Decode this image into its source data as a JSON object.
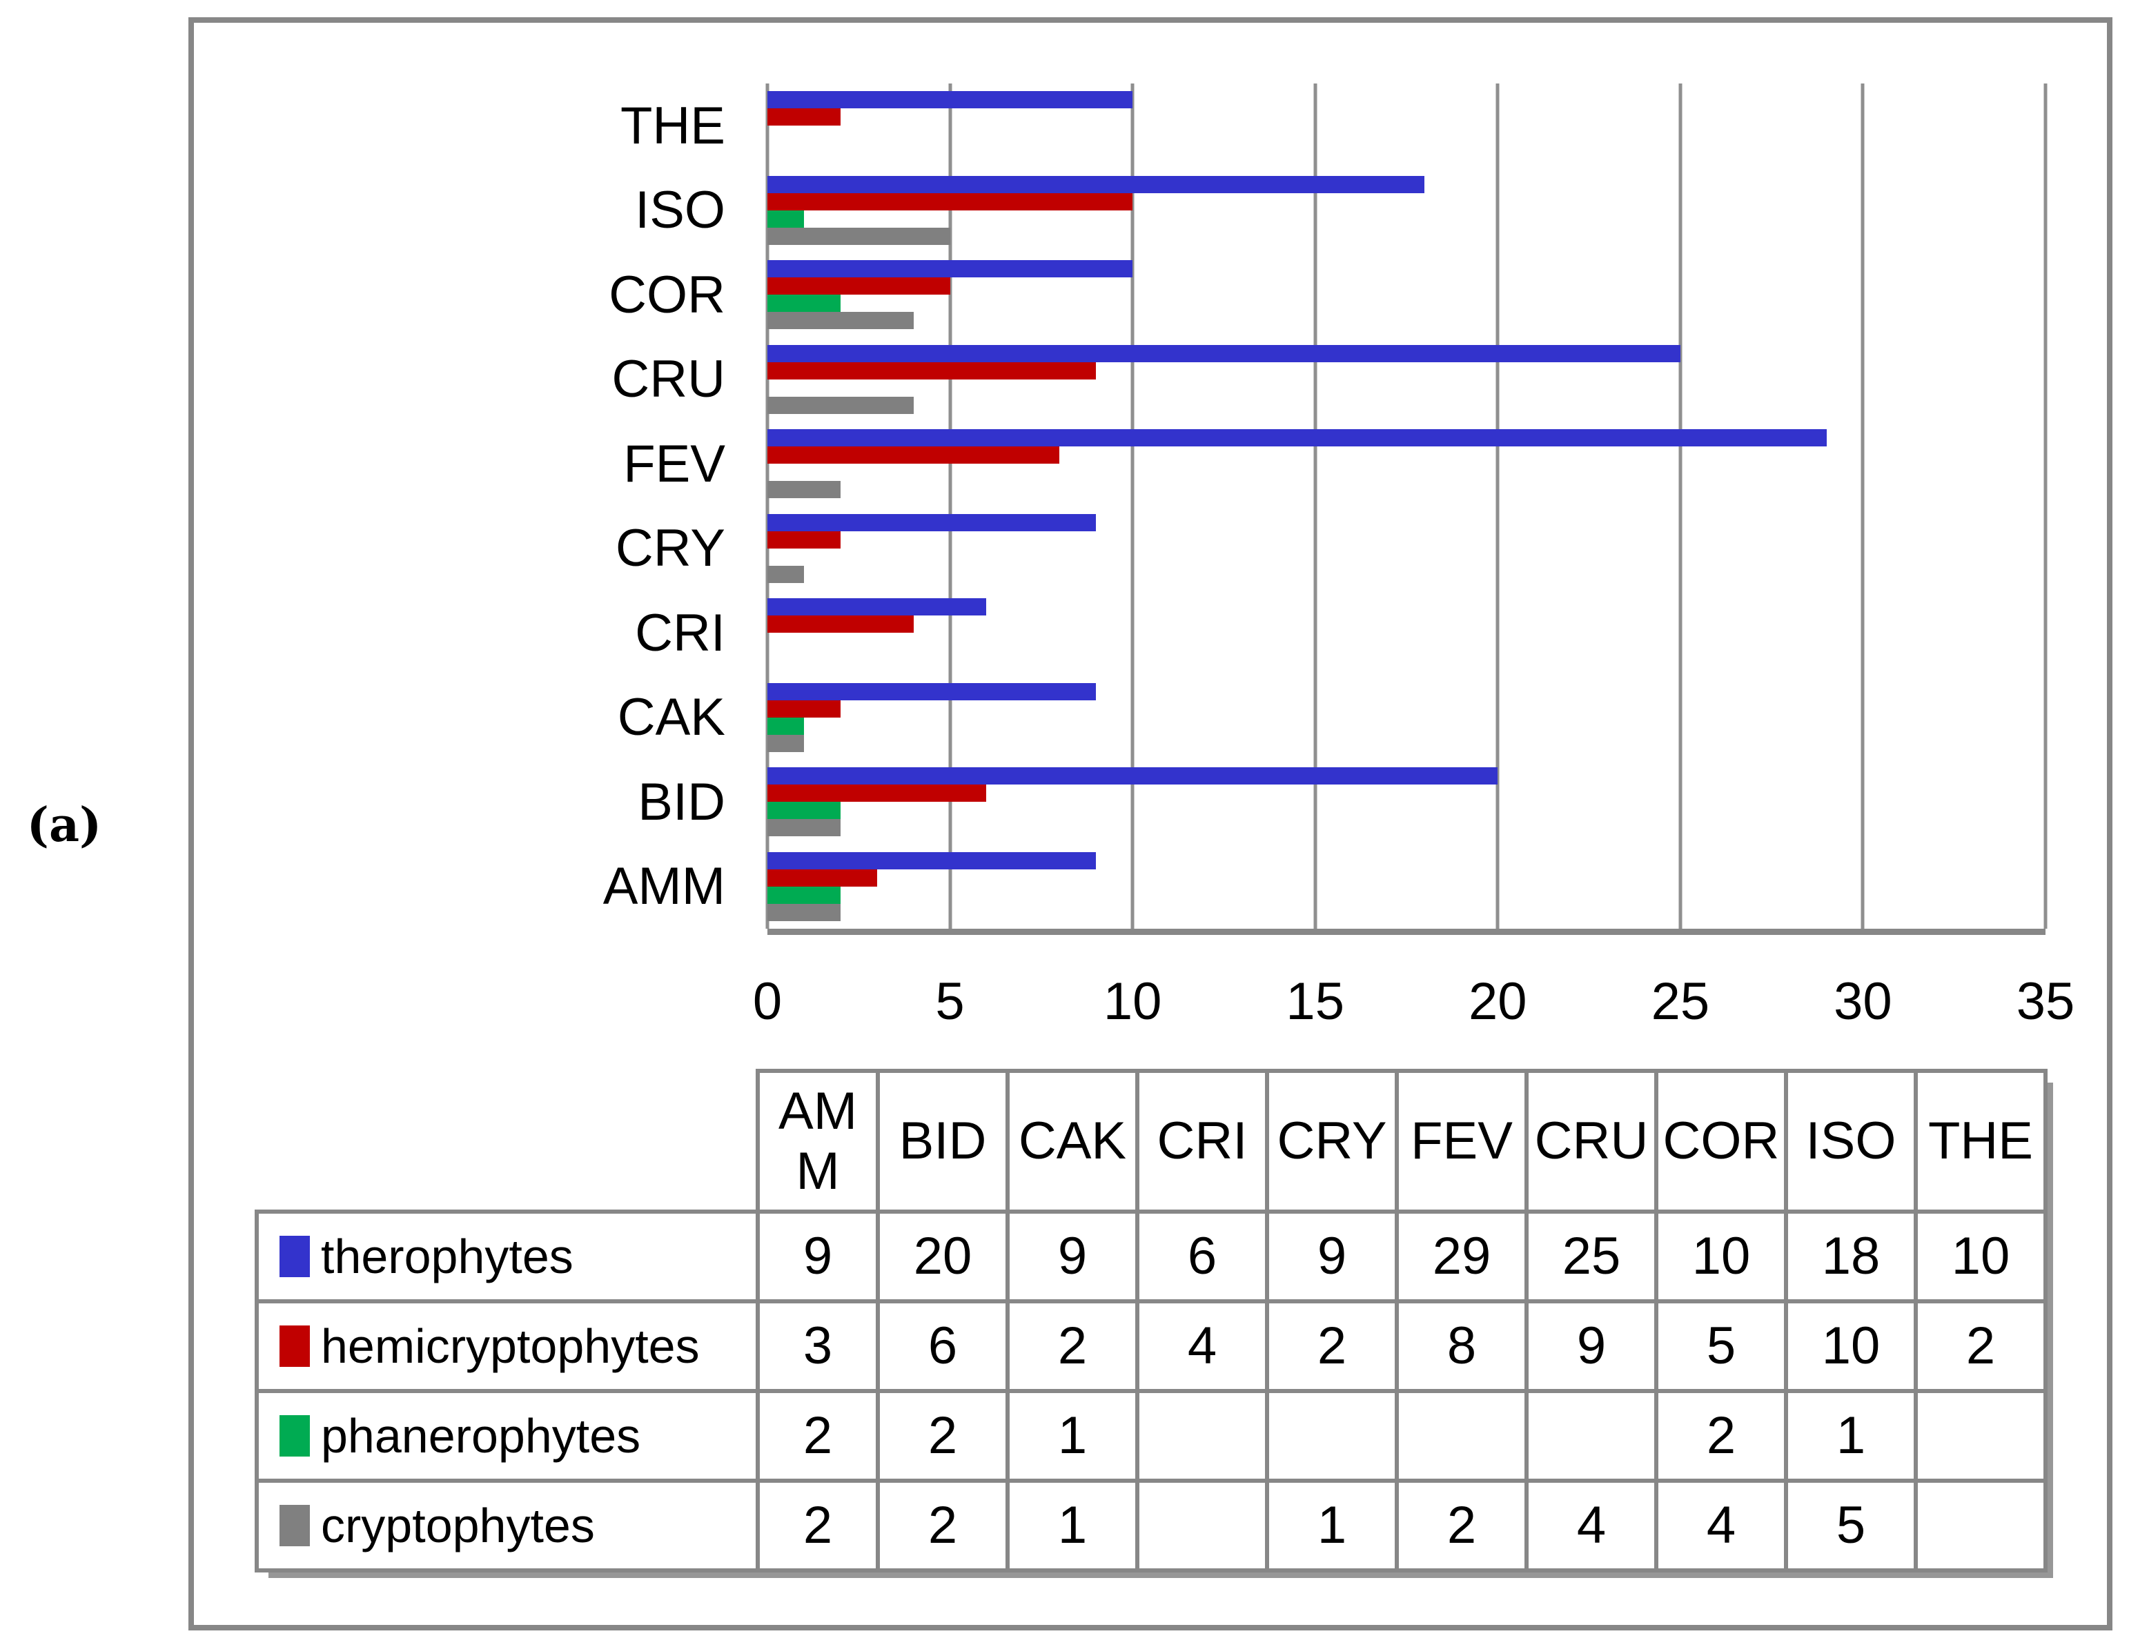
{
  "figure_label": "(a)",
  "colors": {
    "frame_gray": "#878787",
    "therophytes_blue": "#3333CC",
    "hemicryptophytes_red": "#C00000",
    "phanerophytes_green": "#00AB52",
    "cryptophytes_gray": "#808080"
  },
  "chart_data": {
    "type": "bar",
    "orientation": "horizontal",
    "title": "",
    "xlabel": "",
    "ylabel": "",
    "categories": [
      "AMM",
      "BID",
      "CAK",
      "CRI",
      "CRY",
      "FEV",
      "CRU",
      "COR",
      "ISO",
      "THE"
    ],
    "row_order_top_to_bottom": [
      "THE",
      "ISO",
      "COR",
      "CRU",
      "FEV",
      "CRY",
      "CRI",
      "CAK",
      "BID",
      "AMM"
    ],
    "series": [
      {
        "name": "therophytes",
        "color": "#3333CC",
        "values": [
          9,
          20,
          9,
          6,
          9,
          29,
          25,
          10,
          18,
          10
        ]
      },
      {
        "name": "hemicryptophytes",
        "color": "#C00000",
        "values": [
          3,
          6,
          2,
          4,
          2,
          8,
          9,
          5,
          10,
          2
        ]
      },
      {
        "name": "phanerophytes",
        "color": "#00AB52",
        "values": [
          2,
          2,
          1,
          null,
          null,
          null,
          null,
          2,
          1,
          null
        ]
      },
      {
        "name": "cryptophytes",
        "color": "#808080",
        "values": [
          2,
          2,
          1,
          null,
          1,
          2,
          4,
          4,
          5,
          null
        ]
      }
    ],
    "xlim": [
      0,
      35
    ],
    "x_ticks": [
      0,
      5,
      10,
      15,
      20,
      25,
      30,
      35
    ],
    "grid": "vertical-major-only",
    "legend_position": "table-left-column"
  }
}
